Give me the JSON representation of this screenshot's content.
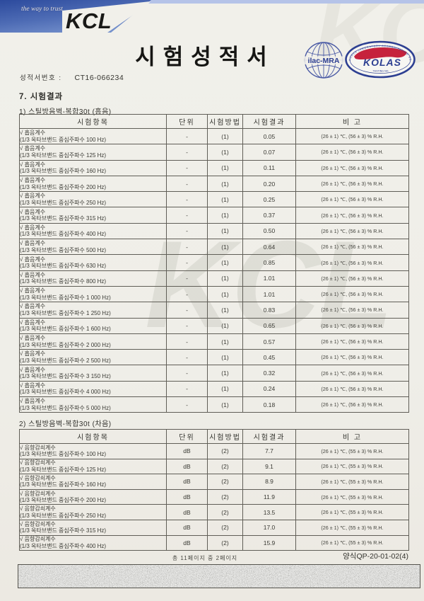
{
  "page": {
    "tagline": "the way to trust",
    "brand": "KCL",
    "title": "시험성적서",
    "report_no_label": "성적서번호 :",
    "report_no": "CT16-066234",
    "watermark": "KCL",
    "section_title": "7. 시험결과",
    "colors": {
      "band_dark": "#2c4a9d",
      "band_light": "#7591cc",
      "top_strip": "#b5c3e8",
      "logo_navy": "#2d3f92",
      "kolas_red": "#c6223c",
      "paper": "#f0efe9"
    }
  },
  "logos": {
    "ilac_label": "ilac-MRA",
    "kolas_label": "KOLAS",
    "kolas_ring_text": "KOREA LABORATORY ACCREDITATION SCHEME",
    "kolas_bottom_text": "TESTING NO."
  },
  "tables": [
    {
      "caption": "1) 스틸방음벽-복합30t (흡음)",
      "headers": [
        "시험항목",
        "단위",
        "시험방법",
        "시험결과",
        "비  고"
      ],
      "rows": [
        {
          "item": "√ 흡음계수",
          "sub": "(1/3 옥타브밴드 중심주파수 100 Hz)",
          "unit": "-",
          "method": "(1)",
          "result": "0.05",
          "remark": "(26 ± 1) ℃, (56 ± 3) % R.H."
        },
        {
          "item": "√ 흡음계수",
          "sub": "(1/3 옥타브밴드 중심주파수 125 Hz)",
          "unit": "-",
          "method": "(1)",
          "result": "0.07",
          "remark": "(26 ± 1) ℃, (56 ± 3) % R.H."
        },
        {
          "item": "√ 흡음계수",
          "sub": "(1/3 옥타브밴드 중심주파수 160 Hz)",
          "unit": "-",
          "method": "(1)",
          "result": "0.11",
          "remark": "(26 ± 1) ℃, (56 ± 3) % R.H."
        },
        {
          "item": "√ 흡음계수",
          "sub": "(1/3 옥타브밴드 중심주파수 200 Hz)",
          "unit": "-",
          "method": "(1)",
          "result": "0.20",
          "remark": "(26 ± 1) ℃, (56 ± 3) % R.H."
        },
        {
          "item": "√ 흡음계수",
          "sub": "(1/3 옥타브밴드 중심주파수 250 Hz)",
          "unit": "-",
          "method": "(1)",
          "result": "0.25",
          "remark": "(26 ± 1) ℃, (56 ± 3) % R.H."
        },
        {
          "item": "√ 흡음계수",
          "sub": "(1/3 옥타브밴드 중심주파수 315 Hz)",
          "unit": "-",
          "method": "(1)",
          "result": "0.37",
          "remark": "(26 ± 1) ℃, (56 ± 3) % R.H."
        },
        {
          "item": "√ 흡음계수",
          "sub": "(1/3 옥타브밴드 중심주파수 400 Hz)",
          "unit": "-",
          "method": "(1)",
          "result": "0.50",
          "remark": "(26 ± 1) ℃, (56 ± 3) % R.H."
        },
        {
          "item": "√ 흡음계수",
          "sub": "(1/3 옥타브밴드 중심주파수 500 Hz)",
          "unit": "-",
          "method": "(1)",
          "result": "0.64",
          "remark": "(26 ± 1) ℃, (56 ± 3) % R.H."
        },
        {
          "item": "√ 흡음계수",
          "sub": "(1/3 옥타브밴드 중심주파수 630 Hz)",
          "unit": "-",
          "method": "(1)",
          "result": "0.85",
          "remark": "(26 ± 1) ℃, (56 ± 3) % R.H."
        },
        {
          "item": "√ 흡음계수",
          "sub": "(1/3 옥타브밴드 중심주파수 800 Hz)",
          "unit": "-",
          "method": "(1)",
          "result": "1.01",
          "remark": "(26 ± 1) ℃, (56 ± 3) % R.H."
        },
        {
          "item": "√ 흡음계수",
          "sub": "(1/3 옥타브밴드 중심주파수 1 000 Hz)",
          "unit": "-",
          "method": "(1)",
          "result": "1.01",
          "remark": "(26 ± 1) ℃, (56 ± 3) % R.H."
        },
        {
          "item": "√ 흡음계수",
          "sub": "(1/3 옥타브밴드 중심주파수 1 250 Hz)",
          "unit": "-",
          "method": "(1)",
          "result": "0.83",
          "remark": "(26 ± 1) ℃, (56 ± 3) % R.H."
        },
        {
          "item": "√ 흡음계수",
          "sub": "(1/3 옥타브밴드 중심주파수 1 600 Hz)",
          "unit": "-",
          "method": "(1)",
          "result": "0.65",
          "remark": "(26 ± 1) ℃, (56 ± 3) % R.H."
        },
        {
          "item": "√ 흡음계수",
          "sub": "(1/3 옥타브밴드 중심주파수 2 000 Hz)",
          "unit": "-",
          "method": "(1)",
          "result": "0.57",
          "remark": "(26 ± 1) ℃, (56 ± 3) % R.H."
        },
        {
          "item": "√ 흡음계수",
          "sub": "(1/3 옥타브밴드 중심주파수 2 500 Hz)",
          "unit": "-",
          "method": "(1)",
          "result": "0.45",
          "remark": "(26 ± 1) ℃, (56 ± 3) % R.H."
        },
        {
          "item": "√ 흡음계수",
          "sub": "(1/3 옥타브밴드 중심주파수 3 150 Hz)",
          "unit": "-",
          "method": "(1)",
          "result": "0.32",
          "remark": "(26 ± 1) ℃, (56 ± 3) % R.H."
        },
        {
          "item": "√ 흡음계수",
          "sub": "(1/3 옥타브밴드 중심주파수 4 000 Hz)",
          "unit": "-",
          "method": "(1)",
          "result": "0.24",
          "remark": "(26 ± 1) ℃, (56 ± 3) % R.H."
        },
        {
          "item": "√ 흡음계수",
          "sub": "(1/3 옥타브밴드 중심주파수 5 000 Hz)",
          "unit": "-",
          "method": "(1)",
          "result": "0.18",
          "remark": "(26 ± 1) ℃, (56 ± 3) % R.H."
        }
      ]
    },
    {
      "caption": "2) 스틸방음벽-복합30t (차음)",
      "headers": [
        "시험항목",
        "단위",
        "시험방법",
        "시험결과",
        "비  고"
      ],
      "rows": [
        {
          "item": "√ 음향감쇠계수",
          "sub": "(1/3 옥타브밴드 중심주파수 100 Hz)",
          "unit": "dB",
          "method": "(2)",
          "result": "7.7",
          "remark": "(26 ± 1) ℃, (55 ± 3) % R.H."
        },
        {
          "item": "√ 음향감쇠계수",
          "sub": "(1/3 옥타브밴드 중심주파수 125 Hz)",
          "unit": "dB",
          "method": "(2)",
          "result": "9.1",
          "remark": "(26 ± 1) ℃, (55 ± 3) % R.H."
        },
        {
          "item": "√ 음향감쇠계수",
          "sub": "(1/3 옥타브밴드 중심주파수 160 Hz)",
          "unit": "dB",
          "method": "(2)",
          "result": "8.9",
          "remark": "(26 ± 1) ℃, (55 ± 3) % R.H."
        },
        {
          "item": "√ 음향감쇠계수",
          "sub": "(1/3 옥타브밴드 중심주파수 200 Hz)",
          "unit": "dB",
          "method": "(2)",
          "result": "11.9",
          "remark": "(26 ± 1) ℃, (55 ± 3) % R.H."
        },
        {
          "item": "√ 음향감쇠계수",
          "sub": "(1/3 옥타브밴드 중심주파수 250 Hz)",
          "unit": "dB",
          "method": "(2)",
          "result": "13.5",
          "remark": "(26 ± 1) ℃, (55 ± 3) % R.H."
        },
        {
          "item": "√ 음향감쇠계수",
          "sub": "(1/3 옥타브밴드 중심주파수 315 Hz)",
          "unit": "dB",
          "method": "(2)",
          "result": "17.0",
          "remark": "(26 ± 1) ℃, (55 ± 3) % R.H."
        },
        {
          "item": "√ 음향감쇠계수",
          "sub": "(1/3 옥타브밴드 중심주파수 400 Hz)",
          "unit": "dB",
          "method": "(2)",
          "result": "15.9",
          "remark": "(26 ± 1) ℃, (55 ± 3) % R.H."
        }
      ]
    }
  ],
  "footer": {
    "page_info": "총 11페이지 중 2페이지",
    "form_no": "양식QP-20-01-02(4)"
  }
}
